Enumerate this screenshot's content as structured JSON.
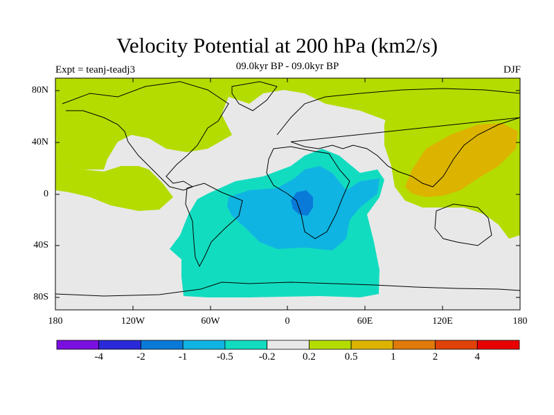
{
  "title": "Velocity Potential at 200 hPa (km2/s)",
  "subtitle": "09.0kyr BP - 09.0kyr BP",
  "left_label": "Expt = teanj-teadj3",
  "right_label": "DJF",
  "axes": {
    "y_ticks": [
      "80N",
      "40N",
      "0",
      "40S",
      "80S"
    ],
    "x_ticks": [
      "180",
      "120W",
      "60W",
      "0",
      "60E",
      "120E",
      "180"
    ]
  },
  "colorbar": {
    "colors": [
      "#7a0fe0",
      "#2a2ad8",
      "#0a7ad8",
      "#10b4e2",
      "#12dcc0",
      "#e8e8e8",
      "#b4dc00",
      "#dcb400",
      "#e07a0a",
      "#e0420a",
      "#e80000"
    ],
    "labels": [
      "-4",
      "-2",
      "-1",
      "-0.5",
      "-0.2",
      "0.2",
      "0.5",
      "1",
      "2",
      "4"
    ]
  },
  "colors": {
    "neutral": "#e8e8e8",
    "positive_weak": "#b4dc00",
    "positive_mid": "#dcb400",
    "negative_weak": "#12dcc0",
    "negative_mid": "#10b4e2",
    "negative_strong": "#0a7ad8"
  }
}
